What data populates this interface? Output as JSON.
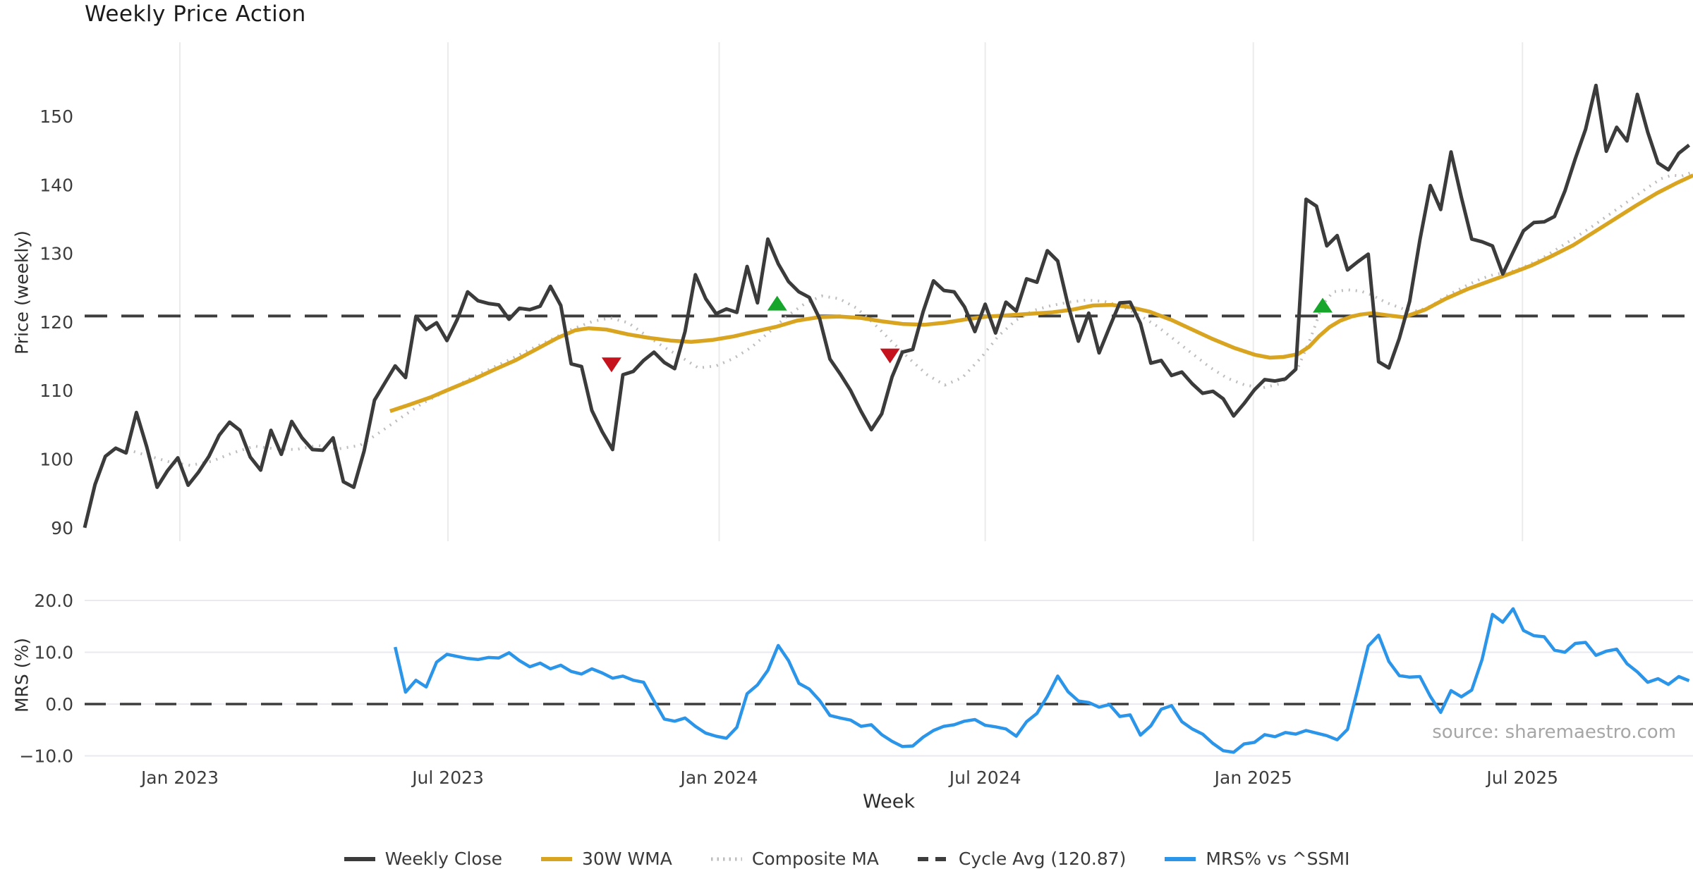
{
  "title": "Weekly Price Action",
  "source_note": "source: sharemaestro.com",
  "colors": {
    "weekly_close": "#3b3b3b",
    "wma30": "#d9a521",
    "composite_ma": "#bdbdbd",
    "cycle_avg": "#3d3d3d",
    "mrs": "#2b95e9",
    "buy_marker": "#18a52b",
    "sell_marker": "#c5121c",
    "grid_price": "#ebebeb",
    "grid_mrs": "#e9e9f0",
    "tick_text": "#3d3d3d"
  },
  "x_axis": {
    "label": "Week",
    "ticks": [
      {
        "t": 9.2,
        "label": "Jan 2023"
      },
      {
        "t": 35.1,
        "label": "Jul 2023"
      },
      {
        "t": 61.3,
        "label": "Jan 2024"
      },
      {
        "t": 87.0,
        "label": "Jul 2024"
      },
      {
        "t": 112.9,
        "label": "Jan 2025"
      },
      {
        "t": 138.9,
        "label": "Jul 2025"
      }
    ]
  },
  "legend": {
    "items": [
      {
        "label": "Weekly Close",
        "style": "solid",
        "color": "#3b3b3b"
      },
      {
        "label": "30W WMA",
        "style": "solid",
        "color": "#d9a521"
      },
      {
        "label": "Composite MA",
        "style": "dotted",
        "color": "#bdbdbd"
      },
      {
        "label": "Cycle Avg (120.87)",
        "style": "dashed",
        "color": "#3d3d3d"
      },
      {
        "label": "MRS% vs ^SSMI",
        "style": "solid",
        "color": "#2b95e9"
      }
    ]
  },
  "chart_data": [
    {
      "panel": "price",
      "type": "line",
      "ylabel": "Price (weekly)",
      "ylim": [
        87.6,
        160.8
      ],
      "grid": "vertical date lines only",
      "yticks": [
        {
          "v": 150,
          "label": "150"
        },
        {
          "v": 140,
          "label": "140"
        },
        {
          "v": 130,
          "label": "130"
        },
        {
          "v": 120,
          "label": "120"
        },
        {
          "v": 110,
          "label": "110"
        },
        {
          "v": 100,
          "label": "100"
        },
        {
          "v": 90,
          "label": "90"
        }
      ],
      "cycle_avg": 120.87,
      "series": [
        {
          "name": "Weekly Close",
          "style": "solid",
          "color": "#3b3b3b",
          "t0": 0,
          "step_weeks": 1,
          "values": [
            90.0,
            96.3,
            100.4,
            101.6,
            100.9,
            106.8,
            101.8,
            95.9,
            98.3,
            100.2,
            96.2,
            98.1,
            100.4,
            103.5,
            105.4,
            104.2,
            100.3,
            98.4,
            104.2,
            100.7,
            105.5,
            103.1,
            101.4,
            101.3,
            103.1,
            96.7,
            95.9,
            101.2,
            108.6,
            111.1,
            113.6,
            111.9,
            120.8,
            118.9,
            119.9,
            117.3,
            120.4,
            124.4,
            123.1,
            122.7,
            122.5,
            120.4,
            122.0,
            121.8,
            122.3,
            125.2,
            122.4,
            113.9,
            113.5,
            107.1,
            104.0,
            101.4,
            112.3,
            112.8,
            114.4,
            115.6,
            114.1,
            113.2,
            118.6,
            126.9,
            123.4,
            121.2,
            121.9,
            121.4,
            128.1,
            122.8,
            132.1,
            128.5,
            125.9,
            124.4,
            123.6,
            120.5,
            114.6,
            112.4,
            110.0,
            107.0,
            104.3,
            106.6,
            112.0,
            115.6,
            116.0,
            121.5,
            126.0,
            124.6,
            124.4,
            122.2,
            118.6,
            122.6,
            118.4,
            122.9,
            121.6,
            126.3,
            125.8,
            130.4,
            128.9,
            122.5,
            117.2,
            121.3,
            115.5,
            119.2,
            122.8,
            122.9,
            119.8,
            114.0,
            114.4,
            112.2,
            112.7,
            111.0,
            109.6,
            109.9,
            108.8,
            106.3,
            108.1,
            110.1,
            111.6,
            111.4,
            111.7,
            113.1,
            137.9,
            136.9,
            131.1,
            132.6,
            127.6,
            128.8,
            129.9,
            114.2,
            113.3,
            117.6,
            123.0,
            132.0,
            139.9,
            136.4,
            144.8,
            138.2,
            132.1,
            131.7,
            131.1,
            127.0,
            130.2,
            133.3,
            134.5,
            134.6,
            135.4,
            139.1,
            143.8,
            148.1,
            154.5,
            144.9,
            148.4,
            146.4,
            153.2,
            147.7,
            143.2,
            142.2,
            144.6,
            145.8
          ]
        },
        {
          "name": "30W WMA",
          "style": "solid",
          "color": "#d9a521",
          "points_t": [
            29.5,
            31.3,
            33.4,
            35.4,
            37.5,
            39.5,
            41.6,
            43.6,
            45.7,
            47.4,
            48.7,
            50.4,
            52.5,
            54.5,
            56.6,
            58.6,
            60.7,
            62.7,
            64.7,
            66.8,
            68.8,
            70.9,
            72.9,
            75.0,
            77.0,
            79.1,
            81.1,
            83.1,
            85.2,
            87.2,
            89.3,
            91.3,
            93.4,
            95.4,
            97.4,
            99.2,
            100.9,
            102.9,
            105.0,
            107.0,
            109.0,
            111.1,
            113.1,
            114.5,
            115.8,
            117.2,
            118.3,
            119.3,
            120.3,
            121.3,
            122.4,
            123.3,
            124.4,
            125.8,
            127.4,
            129.5,
            131.5,
            133.6,
            135.6,
            137.6,
            139.7,
            141.7,
            143.8,
            145.8,
            147.9,
            149.9,
            151.9,
            153.7,
            155.4
          ],
          "points_v": [
            107.0,
            107.9,
            109.0,
            110.3,
            111.6,
            113.0,
            114.4,
            116.0,
            117.7,
            118.8,
            119.1,
            118.9,
            118.2,
            117.7,
            117.3,
            117.1,
            117.4,
            117.9,
            118.6,
            119.3,
            120.2,
            120.7,
            120.8,
            120.6,
            120.1,
            119.7,
            119.6,
            119.9,
            120.4,
            120.8,
            121.0,
            121.2,
            121.4,
            121.8,
            122.4,
            122.5,
            122.2,
            121.5,
            120.3,
            118.9,
            117.5,
            116.2,
            115.2,
            114.8,
            114.9,
            115.3,
            116.4,
            118.0,
            119.3,
            120.2,
            120.8,
            121.1,
            121.3,
            121.0,
            120.7,
            121.8,
            123.4,
            124.8,
            125.9,
            127.0,
            128.2,
            129.6,
            131.2,
            133.1,
            135.1,
            137.0,
            138.8,
            140.2,
            141.4
          ]
        },
        {
          "name": "Composite MA",
          "style": "dotted",
          "color": "#bdbdbd",
          "points_t": [
            4.1,
            6.1,
            8.2,
            10.2,
            12.3,
            14.3,
            16.4,
            18.4,
            20.4,
            22.5,
            24.5,
            26.6,
            28.6,
            30.7,
            32.7,
            34.8,
            36.8,
            38.8,
            40.9,
            42.9,
            45.0,
            47.0,
            49.1,
            50.8,
            52.5,
            54.2,
            55.9,
            57.6,
            59.3,
            61.0,
            62.7,
            64.4,
            66.1,
            67.8,
            69.5,
            71.2,
            72.9,
            74.6,
            76.3,
            78.0,
            79.7,
            81.4,
            83.1,
            84.8,
            86.6,
            88.3,
            90.0,
            91.7,
            93.4,
            95.1,
            96.8,
            98.5,
            100.2,
            101.9,
            103.6,
            105.3,
            107.0,
            108.7,
            110.4,
            112.1,
            113.8,
            115.5,
            117.2,
            118.4,
            119.6,
            120.6,
            122.0,
            123.3,
            124.4,
            125.8,
            127.4,
            128.8,
            130.2,
            130.9,
            132.2,
            133.6,
            134.9,
            136.3,
            137.6,
            139.0,
            140.7,
            142.4,
            144.1,
            145.8,
            147.5,
            149.2,
            150.9,
            152.3,
            153.3,
            154.3,
            155.4
          ],
          "points_v": [
            101.4,
            100.5,
            99.6,
            99.1,
            99.7,
            100.9,
            101.9,
            101.5,
            101.4,
            102.0,
            101.5,
            102.0,
            104.0,
            106.2,
            108.2,
            109.8,
            111.4,
            112.9,
            114.4,
            115.9,
            117.4,
            118.9,
            120.1,
            120.6,
            119.9,
            118.1,
            116.4,
            114.9,
            113.3,
            113.6,
            114.7,
            116.3,
            118.5,
            120.8,
            122.6,
            123.8,
            123.4,
            122.0,
            119.7,
            117.1,
            114.6,
            112.3,
            110.8,
            111.9,
            114.8,
            118.0,
            120.3,
            121.7,
            122.4,
            122.9,
            123.2,
            123.0,
            122.3,
            121.0,
            119.4,
            117.4,
            115.4,
            113.4,
            111.8,
            110.8,
            110.4,
            111.0,
            113.3,
            117.5,
            122.5,
            124.4,
            124.7,
            124.5,
            123.9,
            122.8,
            121.9,
            121.6,
            122.4,
            123.2,
            124.3,
            125.4,
            126.3,
            127.0,
            127.2,
            128.0,
            129.2,
            130.8,
            132.4,
            134.1,
            135.9,
            137.7,
            139.5,
            140.9,
            141.4,
            141.3,
            141.9
          ]
        }
      ],
      "signals": {
        "buy_markers": {
          "shape": "triangle-up",
          "color": "#18a52b",
          "points": [
            {
              "t": 66.9,
              "v": 122.6
            },
            {
              "t": 119.6,
              "v": 122.3
            }
          ]
        },
        "sell_markers": {
          "shape": "triangle-down",
          "color": "#c5121c",
          "points": [
            {
              "t": 50.9,
              "v": 113.9
            },
            {
              "t": 77.8,
              "v": 115.2
            }
          ]
        }
      }
    },
    {
      "panel": "mrs",
      "type": "line",
      "ylabel": "MRS (%)",
      "ylim": [
        -11.0,
        21.6
      ],
      "grid": "horizontal lines at 20 / 10 / 0 / -10, dashed zero line",
      "yticks": [
        {
          "v": 20,
          "label": "20.0"
        },
        {
          "v": 10,
          "label": "10.0"
        },
        {
          "v": 0,
          "label": "0.0"
        },
        {
          "v": -10,
          "label": "−10.0"
        }
      ],
      "zero_line_dashed": true,
      "series": [
        {
          "name": "MRS% vs ^SSMI",
          "style": "solid",
          "color": "#2b95e9",
          "t0": 30,
          "step_weeks": 1,
          "values": [
            11.0,
            2.3,
            4.6,
            3.3,
            8.1,
            9.6,
            9.2,
            8.8,
            8.6,
            9.0,
            8.9,
            9.9,
            8.4,
            7.2,
            7.9,
            6.8,
            7.5,
            6.3,
            5.8,
            6.8,
            6.0,
            5.0,
            5.4,
            4.6,
            4.2,
            0.6,
            -2.9,
            -3.3,
            -2.7,
            -4.3,
            -5.6,
            -6.2,
            -6.6,
            -4.5,
            2.0,
            3.7,
            6.5,
            11.3,
            8.4,
            4.0,
            2.9,
            0.7,
            -2.2,
            -2.7,
            -3.1,
            -4.3,
            -4.0,
            -5.9,
            -7.2,
            -8.2,
            -8.1,
            -6.4,
            -5.1,
            -4.3,
            -4.0,
            -3.3,
            -3.0,
            -4.1,
            -4.4,
            -4.8,
            -6.2,
            -3.4,
            -1.8,
            1.5,
            5.4,
            2.4,
            0.6,
            0.3,
            -0.6,
            -0.1,
            -2.4,
            -2.1,
            -6.0,
            -4.2,
            -1.0,
            -0.3,
            -3.4,
            -4.8,
            -5.8,
            -7.6,
            -9.0,
            -9.3,
            -7.7,
            -7.4,
            -5.9,
            -6.3,
            -5.5,
            -5.8,
            -5.1,
            -5.6,
            -6.1,
            -6.9,
            -4.9,
            3.0,
            11.2,
            13.3,
            8.2,
            5.5,
            5.2,
            5.3,
            1.5,
            -1.6,
            2.6,
            1.4,
            2.7,
            8.6,
            17.3,
            15.8,
            18.4,
            14.2,
            13.2,
            13.0,
            10.4,
            10.0,
            11.7,
            11.9,
            9.4,
            10.2,
            10.6,
            7.8,
            6.2,
            4.2,
            4.9,
            3.8,
            5.3,
            4.5
          ]
        }
      ]
    }
  ]
}
